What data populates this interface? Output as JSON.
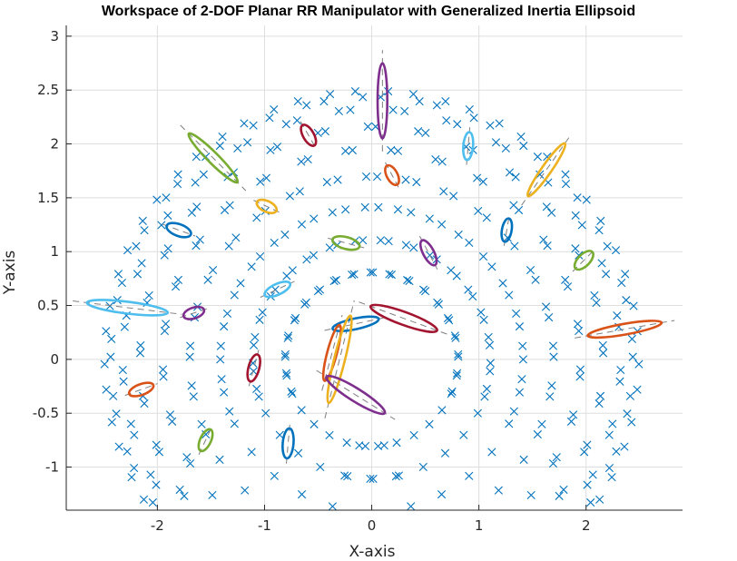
{
  "chart_data": {
    "type": "scatter",
    "title": "Workspace of 2-DOF Planar RR Manipulator with Generalized Inertia Ellipsoid",
    "xlabel": "X-axis",
    "ylabel": "Y-axis",
    "xlim": [
      -2.85,
      2.9
    ],
    "ylim": [
      -1.4,
      3.1
    ],
    "xticks": [
      -2,
      -1,
      0,
      1,
      2
    ],
    "yticks": [
      -1,
      -0.5,
      0,
      0.5,
      1,
      1.5,
      2,
      2.5,
      3
    ],
    "xtick_labels": [
      "-2",
      "-1",
      "0",
      "1",
      "2"
    ],
    "ytick_labels": [
      "-1",
      "-0.5",
      "0",
      "0.5",
      "1",
      "1.5",
      "2",
      "2.5",
      "3"
    ],
    "grid": true,
    "marker": "x",
    "marker_color": "#0072BD",
    "workspace": {
      "link1_length": 1.5,
      "link2_length": 1.0,
      "theta1_range_deg": [
        -150,
        150
      ],
      "theta2_range_deg": [
        -150,
        150
      ],
      "theta1_steps": 25,
      "theta2_steps": 18
    },
    "ellipse_colors": [
      "#0072BD",
      "#D95319",
      "#EDB120",
      "#7E2F8E",
      "#77AC30",
      "#4DBEEE",
      "#A2142F"
    ],
    "ellipses": [
      {
        "cx": 0.1,
        "cy": 2.4,
        "a": 0.35,
        "b": 0.045,
        "angle": 90,
        "color": "#7E2F8E"
      },
      {
        "cx": 0.9,
        "cy": 1.98,
        "a": 0.13,
        "b": 0.045,
        "angle": 85,
        "color": "#4DBEEE"
      },
      {
        "cx": 1.63,
        "cy": 1.76,
        "a": 0.3,
        "b": 0.045,
        "angle": 55,
        "color": "#EDB120"
      },
      {
        "cx": -1.48,
        "cy": 1.87,
        "a": 0.32,
        "b": 0.05,
        "angle": -45,
        "color": "#77AC30"
      },
      {
        "cx": -0.59,
        "cy": 2.08,
        "a": 0.11,
        "b": 0.05,
        "angle": -60,
        "color": "#A2142F"
      },
      {
        "cx": 0.19,
        "cy": 1.71,
        "a": 0.1,
        "b": 0.05,
        "angle": -62,
        "color": "#D95319"
      },
      {
        "cx": -0.98,
        "cy": 1.42,
        "a": 0.1,
        "b": 0.05,
        "angle": -25,
        "color": "#EDB120"
      },
      {
        "cx": -1.8,
        "cy": 1.2,
        "a": 0.12,
        "b": 0.055,
        "angle": -20,
        "color": "#0072BD"
      },
      {
        "cx": -0.24,
        "cy": 1.08,
        "a": 0.13,
        "b": 0.055,
        "angle": -15,
        "color": "#77AC30"
      },
      {
        "cx": 0.53,
        "cy": 0.99,
        "a": 0.13,
        "b": 0.05,
        "angle": -62,
        "color": "#7E2F8E"
      },
      {
        "cx": 1.26,
        "cy": 1.2,
        "a": 0.11,
        "b": 0.045,
        "angle": 80,
        "color": "#0072BD"
      },
      {
        "cx": 1.98,
        "cy": 0.92,
        "a": 0.11,
        "b": 0.055,
        "angle": 45,
        "color": "#77AC30"
      },
      {
        "cx": -2.28,
        "cy": 0.48,
        "a": 0.38,
        "b": 0.055,
        "angle": -7,
        "color": "#4DBEEE"
      },
      {
        "cx": -0.88,
        "cy": 0.65,
        "a": 0.13,
        "b": 0.05,
        "angle": 25,
        "color": "#4DBEEE"
      },
      {
        "cx": -1.66,
        "cy": 0.43,
        "a": 0.1,
        "b": 0.05,
        "angle": 18,
        "color": "#7E2F8E"
      },
      {
        "cx": 0.3,
        "cy": 0.38,
        "a": 0.33,
        "b": 0.06,
        "angle": -20,
        "color": "#A2142F"
      },
      {
        "cx": -0.15,
        "cy": 0.33,
        "a": 0.22,
        "b": 0.05,
        "angle": 12,
        "color": "#0072BD"
      },
      {
        "cx": -0.37,
        "cy": 0.06,
        "a": 0.27,
        "b": 0.045,
        "angle": 75,
        "color": "#D95319"
      },
      {
        "cx": -0.3,
        "cy": 0.0,
        "a": 0.42,
        "b": 0.05,
        "angle": 76,
        "color": "#EDB120"
      },
      {
        "cx": 2.36,
        "cy": 0.28,
        "a": 0.35,
        "b": 0.05,
        "angle": 10,
        "color": "#D95319"
      },
      {
        "cx": -0.15,
        "cy": -0.33,
        "a": 0.32,
        "b": 0.06,
        "angle": -32,
        "color": "#7E2F8E"
      },
      {
        "cx": -1.1,
        "cy": -0.08,
        "a": 0.13,
        "b": 0.05,
        "angle": 75,
        "color": "#A2142F"
      },
      {
        "cx": -2.15,
        "cy": -0.28,
        "a": 0.12,
        "b": 0.05,
        "angle": 20,
        "color": "#D95319"
      },
      {
        "cx": -1.55,
        "cy": -0.75,
        "a": 0.11,
        "b": 0.05,
        "angle": 65,
        "color": "#77AC30"
      },
      {
        "cx": -0.78,
        "cy": -0.78,
        "a": 0.14,
        "b": 0.05,
        "angle": 85,
        "color": "#0072BD"
      }
    ]
  }
}
